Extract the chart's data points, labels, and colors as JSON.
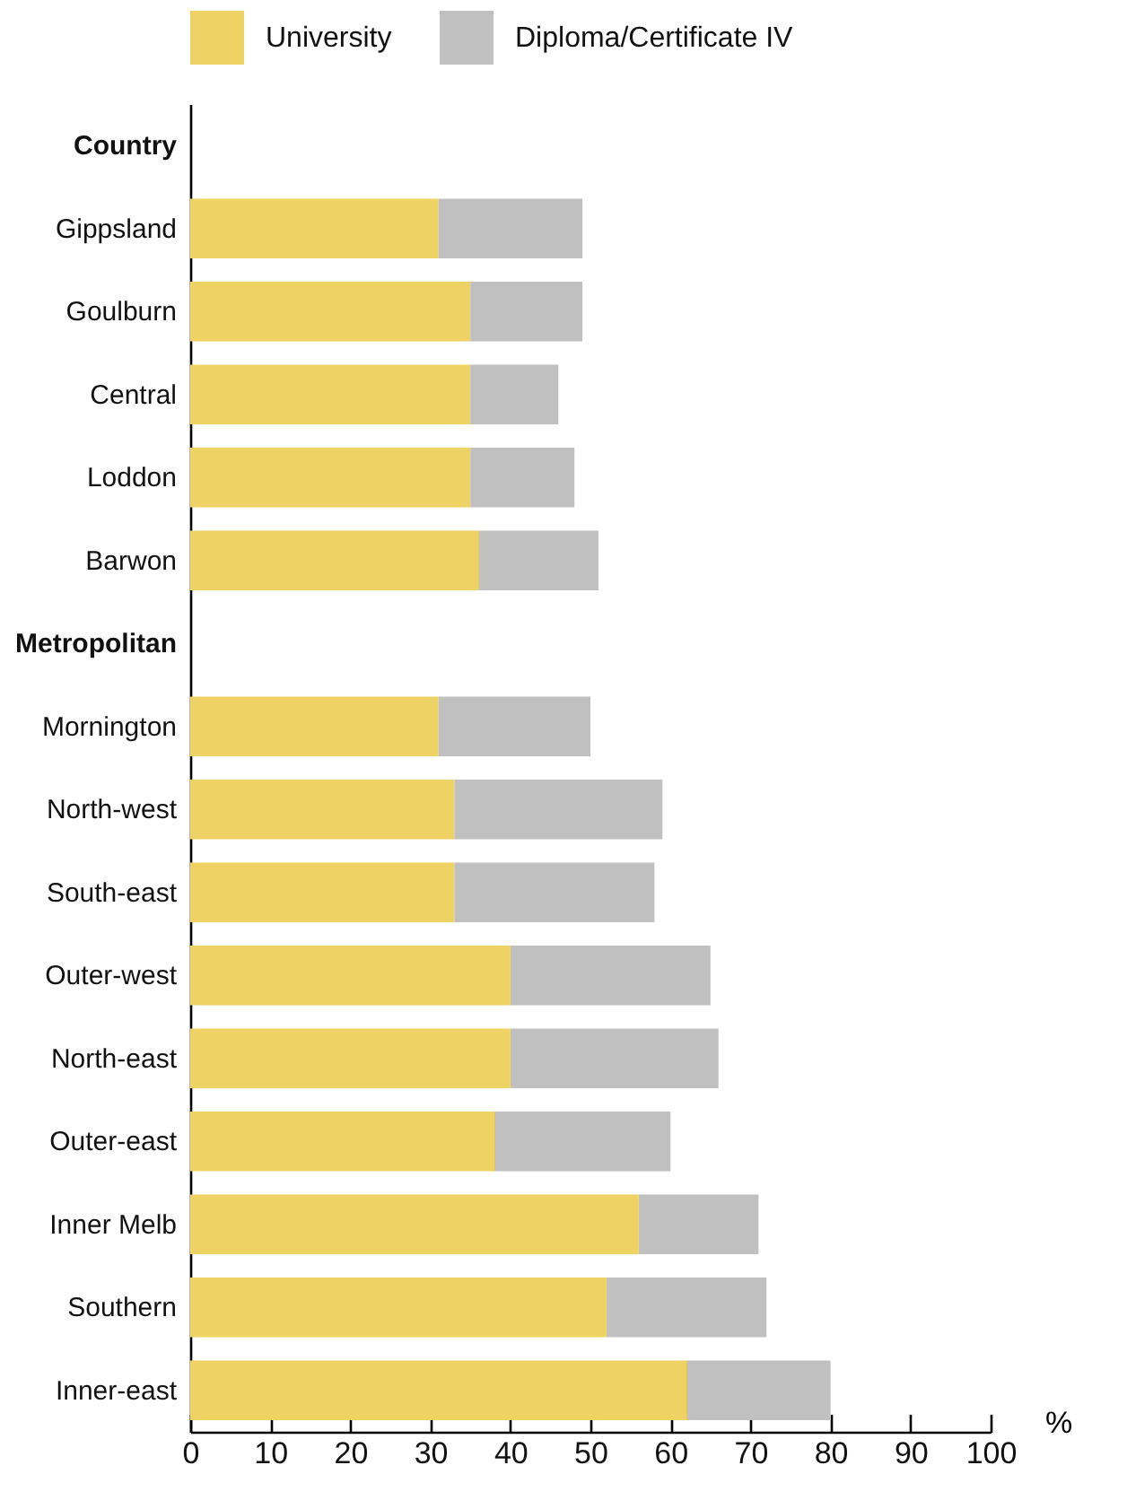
{
  "chart_data": {
    "type": "bar",
    "orientation": "horizontal",
    "stacked": true,
    "categories": [
      "Country",
      "Gippsland",
      "Goulburn",
      "Central",
      "Loddon",
      "Barwon",
      "Metropolitan",
      "Mornington",
      "North-west",
      "South-east",
      "Outer-west",
      "North-east",
      "Outer-east",
      "Inner Melb",
      "Southern",
      "Inner-east"
    ],
    "series": [
      {
        "name": "University",
        "color": "#eed264",
        "values": [
          null,
          31,
          35,
          35,
          35,
          36,
          null,
          31,
          33,
          33,
          40,
          40,
          38,
          56,
          52,
          62
        ]
      },
      {
        "name": "Diploma/Certificate IV",
        "color": "#c0c0c0",
        "values": [
          null,
          18,
          14,
          11,
          13,
          15,
          null,
          19,
          26,
          25,
          25,
          26,
          22,
          15,
          20,
          18
        ]
      }
    ],
    "xlabel": "%",
    "xlim": [
      0,
      100
    ],
    "xticks": [
      0,
      10,
      20,
      30,
      40,
      50,
      60,
      70,
      80,
      90,
      100
    ],
    "grid": false,
    "legend": "top"
  }
}
